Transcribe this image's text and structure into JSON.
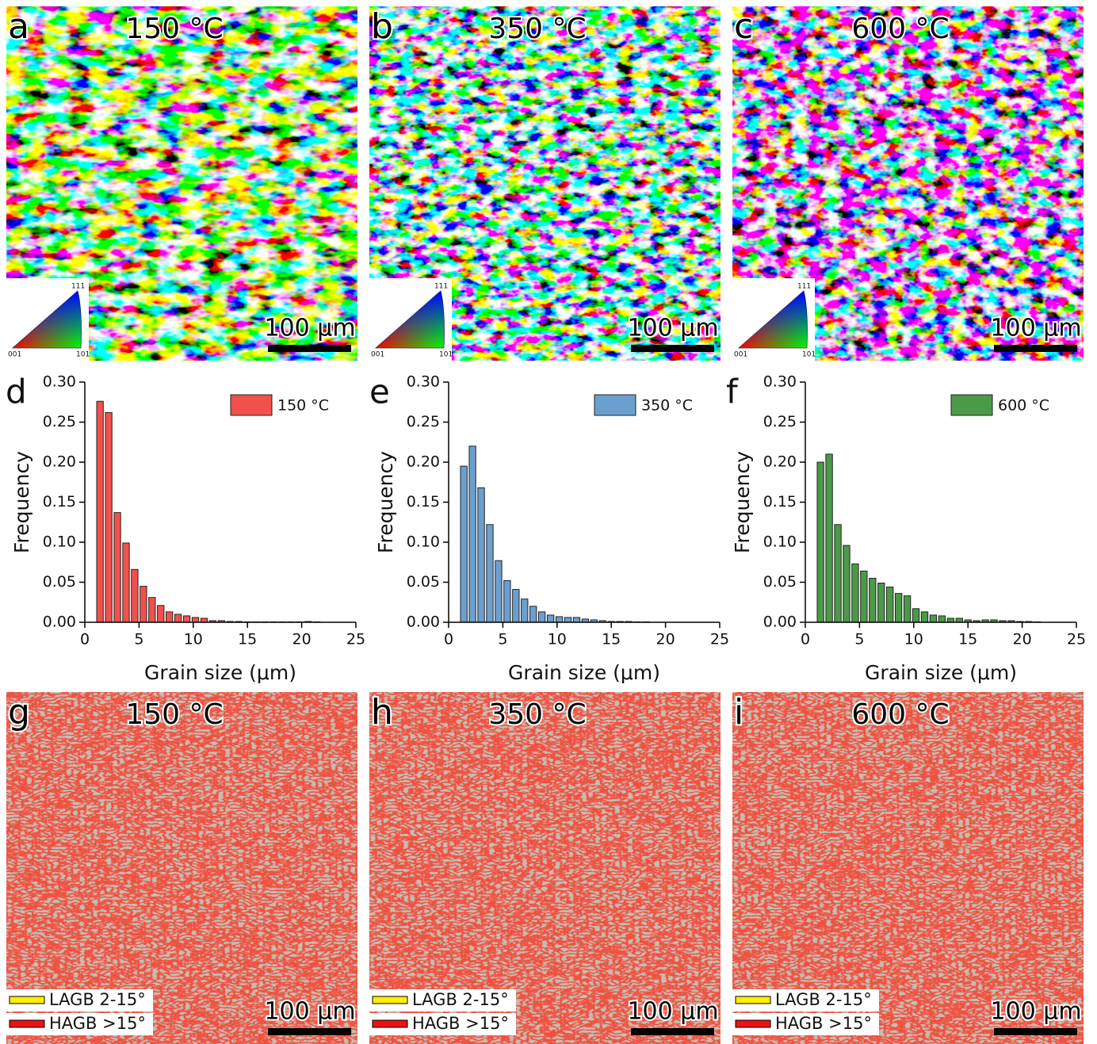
{
  "map_panels": [
    {
      "label": "a",
      "title": "150 °C",
      "scale_bar": "100 µm",
      "ipf": [
        "001",
        "101",
        "111"
      ]
    },
    {
      "label": "b",
      "title": "350 °C",
      "scale_bar": "100 µm",
      "ipf": [
        "001",
        "101",
        "111"
      ]
    },
    {
      "label": "c",
      "title": "600 °C",
      "scale_bar": "100 µm",
      "ipf": [
        "001",
        "101",
        "111"
      ]
    },
    {
      "label": "g",
      "title": "150 °C",
      "scale_bar": "100 µm",
      "legend": [
        "LAGB 2-15°",
        "HAGB >15°"
      ]
    },
    {
      "label": "h",
      "title": "350 °C",
      "scale_bar": "100 µm",
      "legend": [
        "LAGB 2-15°",
        "HAGB >15°"
      ]
    },
    {
      "label": "i",
      "title": "600 °C",
      "scale_bar": "100 µm",
      "legend": [
        "LAGB 2-15°",
        "HAGB >15°"
      ]
    }
  ],
  "chart_data": [
    {
      "type": "histogram",
      "panel_label": "d",
      "xlabel": "Grain size (μm)",
      "ylabel": "Frequency",
      "bins": [
        1.0,
        1.8,
        2.6,
        3.4,
        4.2,
        5.0,
        5.8,
        6.6,
        7.4,
        8.2,
        9.0,
        9.8,
        10.6,
        11.4,
        12.2,
        13.0,
        13.8,
        14.6,
        15.4,
        16.2,
        17.0,
        17.8,
        18.6,
        19.4,
        20.2,
        21.0,
        21.8,
        22.6
      ],
      "series": [
        {
          "name": "150 °C",
          "color": "#f0514c",
          "values": [
            0.276,
            0.262,
            0.137,
            0.099,
            0.066,
            0.045,
            0.031,
            0.021,
            0.013,
            0.01,
            0.008,
            0.006,
            0.005,
            0.002,
            0.002,
            0.001,
            0.001,
            0.0005,
            0.0005,
            0.0005,
            0.0005,
            0.0005,
            0.0005,
            0.0005,
            0.001,
            0.0005,
            0
          ]
        }
      ],
      "xlim": [
        0,
        25
      ],
      "ylim": [
        0,
        0.3
      ],
      "xticks": [
        0,
        5,
        10,
        15,
        20,
        25
      ],
      "yticks": [
        {
          "value": 0,
          "label": "0.00"
        },
        {
          "value": 0.05,
          "label": "0.05"
        },
        {
          "value": 0.1,
          "label": "0.10"
        },
        {
          "value": 0.15,
          "label": "0.15"
        },
        {
          "value": 0.2,
          "label": "0.20"
        },
        {
          "value": 0.25,
          "label": "0.25"
        },
        {
          "value": 0.3,
          "label": "0.30"
        }
      ]
    },
    {
      "type": "histogram",
      "panel_label": "e",
      "xlabel": "Grain size (μm)",
      "ylabel": "Frequency",
      "bins": [
        1.0,
        1.8,
        2.6,
        3.4,
        4.2,
        5.0,
        5.8,
        6.6,
        7.4,
        8.2,
        9.0,
        9.8,
        10.6,
        11.4,
        12.2,
        13.0,
        13.8,
        14.6,
        15.4,
        16.2,
        17.0,
        17.8,
        18.6,
        19.4,
        20.2,
        21.0,
        21.8,
        22.6
      ],
      "series": [
        {
          "name": "350 °C",
          "color": "#6b9fd0",
          "values": [
            0.195,
            0.22,
            0.168,
            0.122,
            0.077,
            0.052,
            0.041,
            0.029,
            0.02,
            0.013,
            0.009,
            0.007,
            0.006,
            0.006,
            0.004,
            0.003,
            0.002,
            0.001,
            0.001,
            0.001,
            0.0005,
            0.0005,
            0,
            0,
            0,
            0,
            0
          ]
        }
      ],
      "xlim": [
        0,
        25
      ],
      "ylim": [
        0,
        0.3
      ],
      "xticks": [
        0,
        5,
        10,
        15,
        20,
        25
      ],
      "yticks": [
        {
          "value": 0,
          "label": "0.00"
        },
        {
          "value": 0.05,
          "label": "0.05"
        },
        {
          "value": 0.1,
          "label": "0.10"
        },
        {
          "value": 0.15,
          "label": "0.15"
        },
        {
          "value": 0.2,
          "label": "0.20"
        },
        {
          "value": 0.25,
          "label": "0.25"
        },
        {
          "value": 0.3,
          "label": "0.30"
        }
      ]
    },
    {
      "type": "histogram",
      "panel_label": "f",
      "xlabel": "Grain size (μm)",
      "ylabel": "Frequency",
      "bins": [
        1.0,
        1.8,
        2.6,
        3.4,
        4.2,
        5.0,
        5.8,
        6.6,
        7.4,
        8.2,
        9.0,
        9.8,
        10.6,
        11.4,
        12.2,
        13.0,
        13.8,
        14.6,
        15.4,
        16.2,
        17.0,
        17.8,
        18.6,
        19.4,
        20.2,
        21.0,
        21.8,
        22.6
      ],
      "series": [
        {
          "name": "600 °C",
          "color": "#4b9a47",
          "values": [
            0.2,
            0.21,
            0.122,
            0.096,
            0.073,
            0.064,
            0.055,
            0.049,
            0.044,
            0.036,
            0.033,
            0.017,
            0.013,
            0.009,
            0.008,
            0.005,
            0.005,
            0.003,
            0.002,
            0.003,
            0.003,
            0.002,
            0.002,
            0.001,
            0.001,
            0.0005,
            0
          ]
        }
      ],
      "xlim": [
        0,
        25
      ],
      "ylim": [
        0,
        0.3
      ],
      "xticks": [
        0,
        5,
        10,
        15,
        20,
        25
      ],
      "yticks": [
        {
          "value": 0,
          "label": "0.00"
        },
        {
          "value": 0.05,
          "label": "0.05"
        },
        {
          "value": 0.1,
          "label": "0.10"
        },
        {
          "value": 0.15,
          "label": "0.15"
        },
        {
          "value": 0.2,
          "label": "0.20"
        },
        {
          "value": 0.25,
          "label": "0.25"
        },
        {
          "value": 0.3,
          "label": "0.30"
        }
      ]
    }
  ]
}
